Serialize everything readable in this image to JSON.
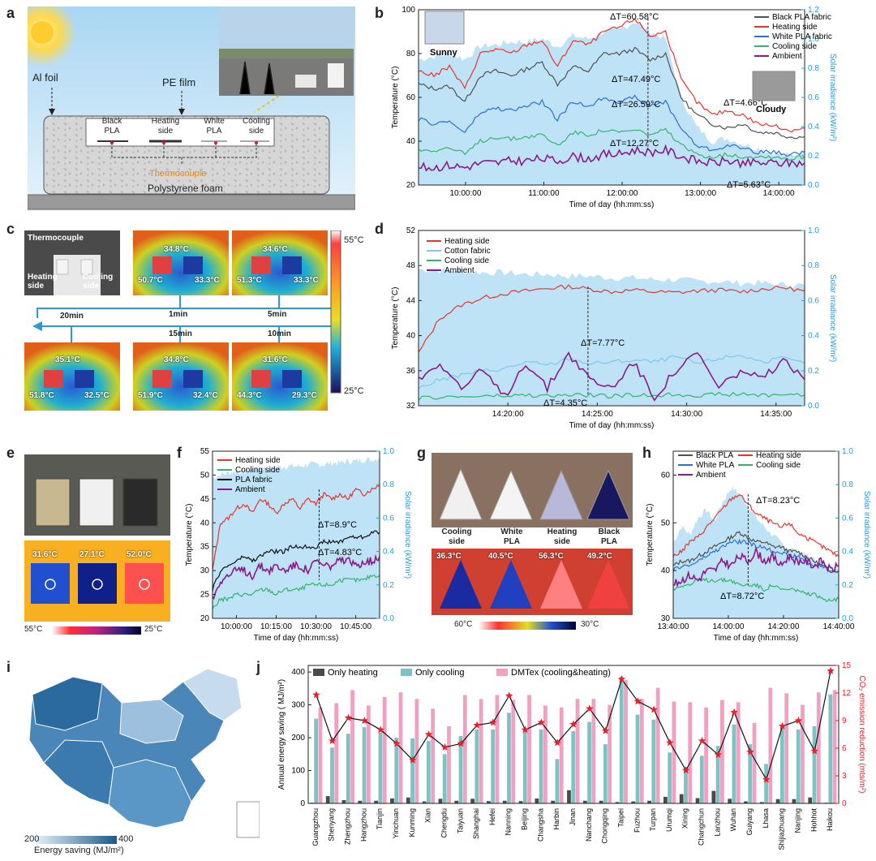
{
  "panels": {
    "a": "a",
    "b": "b",
    "c": "c",
    "d": "d",
    "e": "e",
    "f": "f",
    "g": "g",
    "h": "h",
    "i": "i",
    "j": "j"
  },
  "a": {
    "al_foil": "Al foil",
    "pe_film": "PE film",
    "black_pla": "Black\nPLA",
    "heating_side": "Heating\nside",
    "white_pla": "White\nPLA",
    "cooling_side": "Cooling\nside",
    "thermocouple": "Thermocouple",
    "foam": "Polystyrene foam"
  },
  "c": {
    "photo_thermocouple": "Thermocouple",
    "photo_heating": "Heating side",
    "photo_cooling": "Cooling side",
    "scale_max": "55°C",
    "scale_min": "25°C",
    "t1": "1min",
    "t5": "5min",
    "t10": "10min",
    "t15": "15min",
    "t20": "20min",
    "img1": {
      "top": "34.8°C",
      "left": "50.7°C",
      "right": "33.3°C"
    },
    "img5": {
      "top": "34.6°C",
      "left": "51.3°C",
      "right": "33.3°C"
    },
    "img20": {
      "top": "35.1°C",
      "left": "51.8°C",
      "right": "32.5°C"
    },
    "img15": {
      "top": "34.8°C",
      "left": "51.9°C",
      "right": "32.4°C"
    },
    "img10": {
      "top": "31.6°C",
      "left": "44.3°C",
      "right": "29.3°C"
    }
  },
  "e": {
    "t1": "31.6°C",
    "t2": "27.1°C",
    "t3": "52.0°C",
    "scale_left": "55°C",
    "scale_right": "25°C"
  },
  "g": {
    "labels": [
      "Cooling\nside",
      "White\nPLA",
      "Heating\nside",
      "Black\nPLA"
    ],
    "temps": [
      "36.3°C",
      "40.5°C",
      "56.3°C",
      "49.2°C"
    ],
    "scale_left": "60°C",
    "scale_right": "30°C"
  },
  "i": {
    "legend_min": "200",
    "legend_max": "400",
    "legend_title": "Energy saving (MJ/m²)"
  },
  "colors": {
    "heating": "#e8342e",
    "cooling": "#35b36b",
    "white_pla": "#2a6fd4",
    "black_pla": "#505050",
    "ambient": "#8a1a8a",
    "irradiance": "#bfe3f6",
    "cotton": "#7ec8e8"
  },
  "chart_data": [
    {
      "id": "b",
      "type": "line",
      "xlabel": "Time of day (hh:mm:ss)",
      "ylabel": "Temperature (°C)",
      "y2label": "Solar irradiance (kW/m²)",
      "xticks": [
        "10:00:00",
        "11:00:00",
        "12:00:00",
        "13:00:00",
        "14:00:00"
      ],
      "ylim": [
        20,
        100
      ],
      "yticks": [
        20,
        40,
        60,
        80,
        100
      ],
      "y2lim": [
        0,
        1.2
      ],
      "y2ticks": [
        0.0,
        0.2,
        0.4,
        0.6,
        0.8,
        1.0,
        1.2
      ],
      "x": [
        9.4,
        9.6,
        9.8,
        10.0,
        10.2,
        10.4,
        10.6,
        10.8,
        11.0,
        11.2,
        11.4,
        11.6,
        11.8,
        12.0,
        12.2,
        12.4,
        12.6,
        12.8,
        13.0,
        13.2,
        13.4,
        13.6,
        13.8,
        14.0,
        14.2,
        14.33
      ],
      "series": [
        {
          "name": "Black PLA fabric",
          "values": [
            66,
            64,
            65,
            58,
            70,
            72,
            70,
            73,
            76,
            66,
            74,
            72,
            80,
            80,
            82,
            77,
            80,
            60,
            52,
            48,
            46,
            48,
            44,
            44,
            42,
            42
          ]
        },
        {
          "name": "Heating side",
          "values": [
            72,
            70,
            74,
            64,
            80,
            82,
            80,
            84,
            86,
            74,
            86,
            84,
            90,
            92,
            96,
            88,
            90,
            68,
            58,
            52,
            54,
            52,
            48,
            47,
            45,
            46
          ]
        },
        {
          "name": "White PLA fabric",
          "values": [
            50,
            48,
            49,
            44,
            53,
            55,
            54,
            56,
            58,
            50,
            58,
            56,
            60,
            58,
            60,
            56,
            58,
            46,
            38,
            36,
            38,
            37,
            35,
            35,
            34,
            35
          ]
        },
        {
          "name": "Cooling side",
          "values": [
            36,
            36,
            37,
            34,
            40,
            42,
            41,
            42,
            43,
            38,
            44,
            43,
            45,
            44,
            45,
            43,
            45,
            38,
            34,
            33,
            34,
            33,
            33,
            33,
            32,
            33
          ]
        },
        {
          "name": "Ambient",
          "values": [
            28,
            28,
            29,
            28,
            30,
            30,
            31,
            31,
            32,
            31,
            33,
            32,
            34,
            34,
            36,
            35,
            36,
            33,
            31,
            30,
            31,
            30,
            30,
            30,
            30,
            30
          ]
        }
      ],
      "irradiance": [
        0.86,
        0.88,
        0.9,
        0.86,
        0.95,
        0.96,
        0.98,
        0.98,
        1.0,
        0.95,
        1.02,
        1.0,
        1.05,
        1.06,
        1.12,
        1.05,
        1.0,
        0.6,
        0.4,
        0.3,
        0.32,
        0.28,
        0.25,
        0.22,
        0.2,
        0.22
      ],
      "annotations": [
        "ΔT=60.58°C",
        "ΔT=47.49°C",
        "ΔT=26.59°C",
        "ΔT=12.27°C",
        "ΔT=4.66°C",
        "ΔT=5.63°C"
      ],
      "weather": [
        "Sunny",
        "Cloudy"
      ],
      "xrange": [
        9.4,
        14.33
      ]
    },
    {
      "id": "d",
      "type": "line",
      "xlabel": "Time of day (hh:mm:ss)",
      "ylabel": "Temperature (°C)",
      "y2label": "Solar irradiance (kW/m²)",
      "xticks": [
        "14:20:00",
        "14:25:00",
        "14:30:00",
        "14:35:00"
      ],
      "ylim": [
        32,
        52
      ],
      "yticks": [
        32,
        36,
        40,
        44,
        48,
        52
      ],
      "y2lim": [
        0,
        1.0
      ],
      "y2ticks": [
        0.0,
        0.2,
        0.4,
        0.6,
        0.8,
        1.0
      ],
      "x": [
        14.25,
        14.27,
        14.29,
        14.31,
        14.33,
        14.35,
        14.37,
        14.39,
        14.41,
        14.43,
        14.45,
        14.47,
        14.49,
        14.51,
        14.53,
        14.55,
        14.57,
        14.59,
        14.61
      ],
      "series": [
        {
          "name": "Heating side",
          "values": [
            38,
            42,
            43.5,
            44.3,
            44.8,
            45.1,
            45.4,
            45.6,
            45.3,
            45.0,
            45.2,
            45.0,
            44.9,
            45.1,
            45.2,
            45.0,
            45.3,
            45.5,
            45.1
          ]
        },
        {
          "name": "Cotton fabric",
          "values": [
            34,
            35,
            35.5,
            36,
            36.2,
            37,
            36.6,
            37.4,
            36.8,
            37,
            37.2,
            37,
            37.6,
            36.8,
            37.4,
            37.8,
            37.0,
            37.4,
            36.8
          ]
        },
        {
          "name": "Cooling side",
          "values": [
            32.8,
            33,
            33,
            33.1,
            33.1,
            33.2,
            33.1,
            33.2,
            33.2,
            33.1,
            33.2,
            33.2,
            33.3,
            33.2,
            33.3,
            33.3,
            33.2,
            33.3,
            33.2
          ]
        },
        {
          "name": "Ambient",
          "values": [
            35,
            37,
            34,
            36,
            33,
            37,
            34,
            38,
            35,
            34,
            37,
            33,
            36,
            38,
            34,
            36,
            35,
            37,
            35
          ]
        }
      ],
      "irradiance": [
        0.78,
        0.77,
        0.77,
        0.76,
        0.76,
        0.75,
        0.75,
        0.74,
        0.74,
        0.73,
        0.73,
        0.72,
        0.72,
        0.71,
        0.71,
        0.7,
        0.7,
        0.69,
        0.69
      ],
      "annotations": [
        "ΔT=7.77°C",
        "ΔT=4.35°C"
      ],
      "xrange": [
        14.25,
        14.61
      ]
    },
    {
      "id": "f",
      "type": "line",
      "xlabel": "Time of day (hh:mm:ss)",
      "ylabel": "Temperature (°C)",
      "y2label": "Solar irradiance (kW/m²)",
      "xticks": [
        "10:00:00",
        "10:15:00",
        "10:30:00",
        "10:45:00"
      ],
      "ylim": [
        20,
        55
      ],
      "yticks": [
        20,
        25,
        30,
        35,
        40,
        45,
        50,
        55
      ],
      "y2lim": [
        0,
        1.0
      ],
      "y2ticks": [
        0.0,
        0.2,
        0.4,
        0.6,
        0.8,
        1.0
      ],
      "x": [
        9.85,
        9.9,
        9.95,
        10.0,
        10.05,
        10.1,
        10.15,
        10.2,
        10.25,
        10.3,
        10.35,
        10.4,
        10.45,
        10.5,
        10.55,
        10.6,
        10.65,
        10.7,
        10.75,
        10.8,
        10.85,
        10.9
      ],
      "series": [
        {
          "name": "Heating side",
          "values": [
            30,
            40,
            41,
            43,
            44,
            42,
            45,
            44,
            42,
            44,
            45,
            43,
            45,
            44,
            46,
            45,
            46,
            45,
            47,
            46,
            47,
            48
          ]
        },
        {
          "name": "Cooling side",
          "values": [
            22,
            24,
            24,
            25,
            25,
            25,
            26,
            26,
            25,
            26,
            26,
            26,
            27,
            27,
            27,
            27,
            28,
            28,
            28,
            28,
            29,
            29
          ]
        },
        {
          "name": "PLA fabric",
          "values": [
            26,
            30,
            31,
            32,
            33,
            32,
            33,
            34,
            34,
            34,
            35,
            35,
            35,
            35,
            36,
            36,
            36,
            37,
            37,
            37,
            38,
            38
          ]
        },
        {
          "name": "Ambient",
          "values": [
            24,
            28,
            29,
            30,
            30,
            29,
            31,
            30,
            31,
            30,
            31,
            31,
            30,
            32,
            31,
            31,
            32,
            32,
            31,
            32,
            32,
            33
          ]
        }
      ],
      "irradiance": [
        0.84,
        0.86,
        0.87,
        0.88,
        0.88,
        0.89,
        0.9,
        0.9,
        0.9,
        0.91,
        0.91,
        0.91,
        0.92,
        0.92,
        0.92,
        0.93,
        0.93,
        0.94,
        0.94,
        0.95,
        0.95,
        0.96
      ],
      "annotations": [
        "ΔT=8.9°C",
        "ΔT=4.83°C"
      ],
      "xrange": [
        9.85,
        10.9
      ]
    },
    {
      "id": "h",
      "type": "line",
      "xlabel": "Time of day (hh:mm:ss)",
      "ylabel": "Temperature (°C)",
      "y2label": "Solar irradiance (kW/m²)",
      "xticks": [
        "13:40:00",
        "14:00:00",
        "14:20:00",
        "14:40:00"
      ],
      "ylim": [
        30,
        65
      ],
      "yticks": [
        30,
        40,
        50,
        60
      ],
      "y2lim": [
        0,
        1.0
      ],
      "y2ticks": [
        0.0,
        0.2,
        0.4,
        0.6,
        0.8,
        1.0
      ],
      "x": [
        13.667,
        13.72,
        13.77,
        13.82,
        13.87,
        13.92,
        13.97,
        14.02,
        14.07,
        14.12,
        14.17,
        14.22,
        14.27,
        14.32,
        14.37,
        14.42,
        14.47,
        14.52,
        14.57,
        14.62,
        14.667
      ],
      "series": [
        {
          "name": "Black PLA",
          "values": [
            41,
            42,
            42,
            43,
            44,
            45,
            46,
            47,
            48,
            47,
            46,
            46,
            45,
            45,
            44,
            44,
            43,
            42,
            41,
            40,
            40
          ]
        },
        {
          "name": "Heating side",
          "values": [
            43,
            44,
            46,
            47,
            49,
            51,
            53,
            55,
            56,
            54,
            52,
            51,
            50,
            49,
            50,
            48,
            47,
            46,
            45,
            44,
            43
          ]
        },
        {
          "name": "White PLA",
          "values": [
            40,
            41,
            41,
            42,
            43,
            44,
            45,
            46,
            46,
            46,
            45,
            45,
            44,
            44,
            43,
            43,
            42,
            41,
            41,
            40,
            40
          ]
        },
        {
          "name": "Cooling side",
          "values": [
            36,
            37,
            37,
            38,
            38,
            38,
            38,
            38,
            37,
            37,
            37,
            36,
            37,
            36,
            36,
            36,
            35,
            35,
            34,
            34,
            34
          ]
        },
        {
          "name": "Ambient",
          "values": [
            37,
            38,
            39,
            38,
            40,
            40,
            42,
            41,
            43,
            42,
            44,
            42,
            43,
            41,
            43,
            42,
            42,
            41,
            42,
            40,
            41
          ]
        }
      ],
      "irradiance": [
        0.45,
        0.55,
        0.5,
        0.6,
        0.65,
        0.58,
        0.7,
        0.78,
        0.75,
        0.68,
        0.6,
        0.55,
        0.5,
        0.45,
        0.42,
        0.4,
        0.38,
        0.35,
        0.33,
        0.3,
        0.3
      ],
      "annotations": [
        "ΔT=8.23°C",
        "ΔT=8.72°C"
      ],
      "xrange": [
        13.667,
        14.667
      ]
    },
    {
      "id": "j",
      "type": "bar",
      "ylabel": "Annual energy saving ( MJ/m²)",
      "y2label": "CO₂ emission reduction (mts/m²)",
      "ylim": [
        0,
        420
      ],
      "yticks": [
        0,
        100,
        200,
        300,
        400
      ],
      "y2lim": [
        0,
        15
      ],
      "y2ticks": [
        0,
        3,
        6,
        9,
        12,
        15
      ],
      "categories": [
        "Guangzhou",
        "Shenyang",
        "Zhengzhou",
        "Hangzhou",
        "Tianjin",
        "Yinchuan",
        "Kunming",
        "Xian",
        "Chengdu",
        "Taiyuan",
        "Shanghai",
        "Hefei",
        "Nanning",
        "Beijing",
        "Changsha",
        "Harbin",
        "Jinan",
        "Nanchang",
        "Chongqing",
        "Taipei",
        "Fuzhou",
        "Turpan",
        "Urumqi",
        "Xining",
        "Changchun",
        "Lanzhou",
        "Wuhan",
        "Guiyang",
        "Lhasa",
        "Shijiazhuang",
        "Nanjing",
        "Hohhot",
        "Haikou"
      ],
      "series": [
        {
          "name": "Only heating",
          "values": [
            2,
            22,
            10,
            8,
            8,
            15,
            18,
            6,
            14,
            8,
            14,
            7,
            8,
            7,
            15,
            8,
            40,
            8,
            8,
            4,
            6,
            8,
            20,
            28,
            16,
            38,
            14,
            6,
            4,
            13,
            13,
            18,
            2
          ]
        },
        {
          "name": "Only cooling",
          "values": [
            258,
            170,
            212,
            232,
            216,
            200,
            198,
            190,
            150,
            205,
            225,
            225,
            276,
            225,
            225,
            135,
            220,
            248,
            180,
            385,
            270,
            255,
            155,
            110,
            145,
            175,
            240,
            180,
            120,
            230,
            225,
            235,
            332
          ]
        },
        {
          "name": "DMTex (cooling&heating)",
          "values": [
            292,
            305,
            345,
            298,
            324,
            338,
            318,
            288,
            235,
            330,
            318,
            330,
            315,
            330,
            298,
            292,
            318,
            318,
            300,
            375,
            318,
            352,
            310,
            308,
            292,
            315,
            308,
            245,
            352,
            335,
            300,
            338,
            345
          ]
        }
      ],
      "co2": [
        11.8,
        6.8,
        9.3,
        9.0,
        8.0,
        6.5,
        4.7,
        7.5,
        6.1,
        6.5,
        8.5,
        8.8,
        11.7,
        8.0,
        8.8,
        6.6,
        8.6,
        10.3,
        7.9,
        13.5,
        11.1,
        10.2,
        6.6,
        3.6,
        6.8,
        5.3,
        9.9,
        5.6,
        2.6,
        8.4,
        9.0,
        5.7,
        14.4
      ]
    }
  ],
  "legend_b": [
    "Black PLA fabric",
    "Heating side",
    "White PLA fabric",
    "Cooling side",
    "Ambient"
  ],
  "legend_d": [
    "Heating side",
    "Cotton fabric",
    "Cooling side",
    "Ambient"
  ],
  "legend_f": [
    "Heating side",
    "Cooling side",
    "PLA fabric",
    "Ambient"
  ],
  "legend_h": [
    "Black PLA",
    "Heating side",
    "White PLA",
    "Cooling side",
    "Ambient"
  ],
  "legend_j": [
    "Only heating",
    "Only cooling",
    "DMTex (cooling&heating)"
  ]
}
